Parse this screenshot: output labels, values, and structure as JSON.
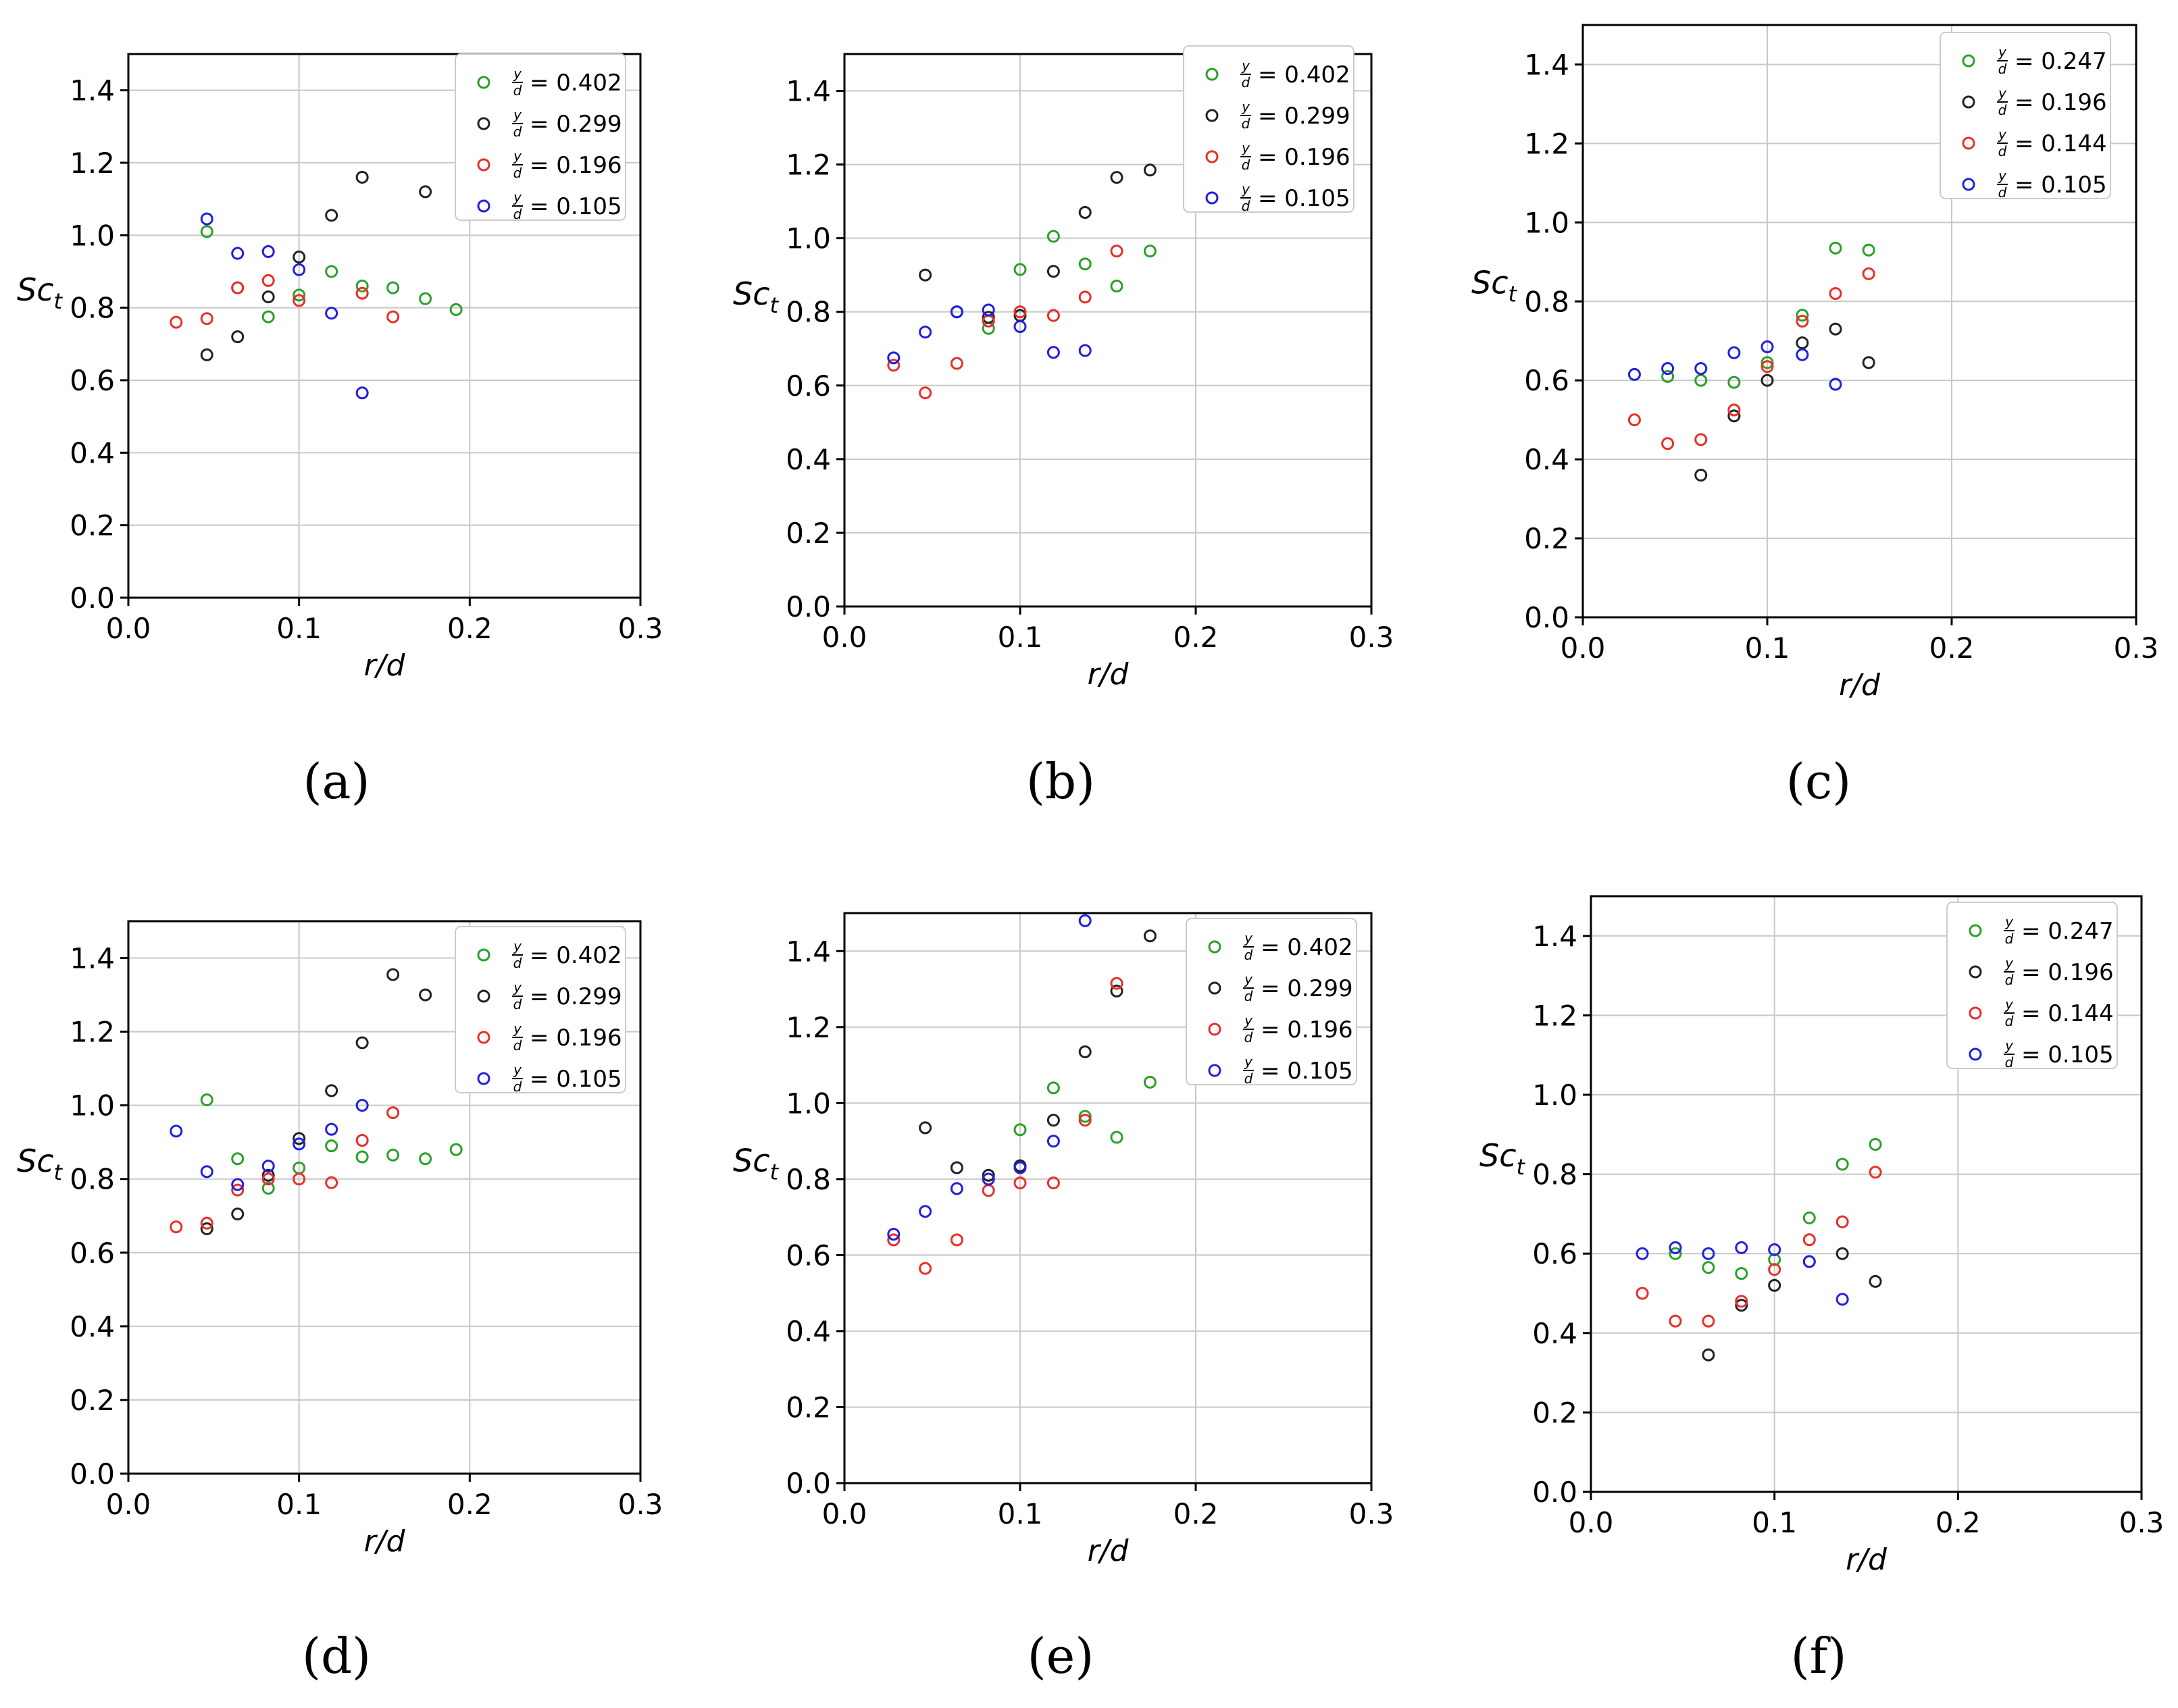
{
  "figure": {
    "panel_labels": [
      "(a)",
      "(b)",
      "(c)",
      "(d)",
      "(e)",
      "(f)"
    ],
    "legend_label_prefix": "y/d = "
  },
  "chart_data": [
    {
      "type": "scatter",
      "panel": "(a)",
      "xlabel": "r/d",
      "ylabel": "Sc_t",
      "xlim": [
        0.0,
        0.3
      ],
      "ylim": [
        0.0,
        1.5
      ],
      "xticks": [
        "0.0",
        "0.1",
        "0.2",
        "0.3"
      ],
      "yticks": [
        "0.0",
        "0.2",
        "0.4",
        "0.6",
        "0.8",
        "1.0",
        "1.2",
        "1.4"
      ],
      "grid": true,
      "legend_position": "top-right",
      "series": [
        {
          "name": "0.402",
          "color": "#2ca02c",
          "x": [
            0.046,
            0.064,
            0.082,
            0.1,
            0.119,
            0.137,
            0.155,
            0.174,
            0.192
          ],
          "y": [
            1.01,
            0.855,
            0.775,
            0.835,
            0.9,
            0.86,
            0.855,
            0.825,
            0.795
          ]
        },
        {
          "name": "0.299",
          "color": "#222222",
          "x": [
            0.046,
            0.064,
            0.082,
            0.1,
            0.119,
            0.137,
            0.174
          ],
          "y": [
            0.67,
            0.72,
            0.83,
            0.94,
            1.055,
            1.16,
            1.12
          ]
        },
        {
          "name": "0.196",
          "color": "#e8302a",
          "x": [
            0.028,
            0.046,
            0.064,
            0.082,
            0.1,
            0.137,
            0.155
          ],
          "y": [
            0.76,
            0.77,
            0.855,
            0.875,
            0.82,
            0.84,
            0.775
          ]
        },
        {
          "name": "0.105",
          "color": "#2020e0",
          "x": [
            0.046,
            0.064,
            0.082,
            0.1,
            0.119,
            0.137
          ],
          "y": [
            1.045,
            0.95,
            0.955,
            0.905,
            0.785,
            0.565
          ]
        }
      ]
    },
    {
      "type": "scatter",
      "panel": "(b)",
      "xlabel": "r/d",
      "ylabel": "Sc_t",
      "xlim": [
        0.0,
        0.3
      ],
      "ylim": [
        0.0,
        1.5
      ],
      "xticks": [
        "0.0",
        "0.1",
        "0.2",
        "0.3"
      ],
      "yticks": [
        "0.0",
        "0.2",
        "0.4",
        "0.6",
        "0.8",
        "1.0",
        "1.2",
        "1.4"
      ],
      "grid": true,
      "legend_position": "top-right",
      "series": [
        {
          "name": "0.402",
          "color": "#2ca02c",
          "x": [
            0.082,
            0.1,
            0.119,
            0.137,
            0.155,
            0.174
          ],
          "y": [
            0.755,
            0.915,
            1.005,
            0.93,
            0.87,
            0.965
          ]
        },
        {
          "name": "0.299",
          "color": "#222222",
          "x": [
            0.046,
            0.064,
            0.082,
            0.1,
            0.119,
            0.137,
            0.155,
            0.174
          ],
          "y": [
            0.9,
            0.8,
            0.785,
            0.79,
            0.91,
            1.07,
            1.165,
            1.185
          ]
        },
        {
          "name": "0.196",
          "color": "#e8302a",
          "x": [
            0.028,
            0.046,
            0.064,
            0.082,
            0.1,
            0.119,
            0.137,
            0.155
          ],
          "y": [
            0.655,
            0.58,
            0.66,
            0.775,
            0.8,
            0.79,
            0.84,
            0.965
          ]
        },
        {
          "name": "0.105",
          "color": "#2020e0",
          "x": [
            0.028,
            0.046,
            0.064,
            0.082,
            0.1,
            0.119,
            0.137
          ],
          "y": [
            0.675,
            0.745,
            0.8,
            0.805,
            0.76,
            0.69,
            0.695
          ]
        }
      ]
    },
    {
      "type": "scatter",
      "panel": "(c)",
      "xlabel": "r/d",
      "ylabel": "Sc_t",
      "xlim": [
        0.0,
        0.3
      ],
      "ylim": [
        0.0,
        1.5
      ],
      "xticks": [
        "0.0",
        "0.1",
        "0.2",
        "0.3"
      ],
      "yticks": [
        "0.0",
        "0.2",
        "0.4",
        "0.6",
        "0.8",
        "1.0",
        "1.2",
        "1.4"
      ],
      "grid": true,
      "legend_position": "top-right",
      "series": [
        {
          "name": "0.247",
          "color": "#2ca02c",
          "x": [
            0.046,
            0.064,
            0.082,
            0.1,
            0.119,
            0.137,
            0.155
          ],
          "y": [
            0.61,
            0.6,
            0.595,
            0.645,
            0.765,
            0.935,
            0.93
          ]
        },
        {
          "name": "0.196",
          "color": "#222222",
          "x": [
            0.064,
            0.082,
            0.1,
            0.119,
            0.137,
            0.155
          ],
          "y": [
            0.36,
            0.51,
            0.6,
            0.695,
            0.73,
            0.645
          ]
        },
        {
          "name": "0.144",
          "color": "#e8302a",
          "x": [
            0.028,
            0.046,
            0.064,
            0.082,
            0.1,
            0.119,
            0.137,
            0.155
          ],
          "y": [
            0.5,
            0.44,
            0.45,
            0.525,
            0.635,
            0.75,
            0.82,
            0.87
          ]
        },
        {
          "name": "0.105",
          "color": "#2020e0",
          "x": [
            0.028,
            0.046,
            0.064,
            0.082,
            0.1,
            0.119,
            0.137
          ],
          "y": [
            0.615,
            0.63,
            0.63,
            0.67,
            0.685,
            0.665,
            0.59
          ]
        }
      ]
    },
    {
      "type": "scatter",
      "panel": "(d)",
      "xlabel": "r/d",
      "ylabel": "Sc_t",
      "xlim": [
        0.0,
        0.3
      ],
      "ylim": [
        0.0,
        1.5
      ],
      "xticks": [
        "0.0",
        "0.1",
        "0.2",
        "0.3"
      ],
      "yticks": [
        "0.0",
        "0.2",
        "0.4",
        "0.6",
        "0.8",
        "1.0",
        "1.2",
        "1.4"
      ],
      "grid": true,
      "legend_position": "top-right",
      "series": [
        {
          "name": "0.402",
          "color": "#2ca02c",
          "x": [
            0.046,
            0.064,
            0.082,
            0.1,
            0.119,
            0.137,
            0.155,
            0.174,
            0.192
          ],
          "y": [
            1.015,
            0.855,
            0.775,
            0.83,
            0.89,
            0.86,
            0.865,
            0.855,
            0.88
          ]
        },
        {
          "name": "0.299",
          "color": "#222222",
          "x": [
            0.046,
            0.064,
            0.082,
            0.1,
            0.119,
            0.137,
            0.155,
            0.174
          ],
          "y": [
            0.665,
            0.705,
            0.81,
            0.91,
            1.04,
            1.17,
            1.355,
            1.3
          ]
        },
        {
          "name": "0.196",
          "color": "#e8302a",
          "x": [
            0.028,
            0.046,
            0.064,
            0.082,
            0.1,
            0.119,
            0.137,
            0.155
          ],
          "y": [
            0.67,
            0.68,
            0.77,
            0.8,
            0.8,
            0.79,
            0.905,
            0.98
          ]
        },
        {
          "name": "0.105",
          "color": "#2020e0",
          "x": [
            0.028,
            0.046,
            0.064,
            0.082,
            0.1,
            0.119,
            0.137
          ],
          "y": [
            0.93,
            0.82,
            0.785,
            0.835,
            0.895,
            0.935,
            1.0
          ]
        }
      ]
    },
    {
      "type": "scatter",
      "panel": "(e)",
      "xlabel": "r/d",
      "ylabel": "Sc_t",
      "xlim": [
        0.0,
        0.3
      ],
      "ylim": [
        0.0,
        1.5
      ],
      "xticks": [
        "0.0",
        "0.1",
        "0.2",
        "0.3"
      ],
      "yticks": [
        "0.0",
        "0.2",
        "0.4",
        "0.6",
        "0.8",
        "1.0",
        "1.2",
        "1.4"
      ],
      "grid": true,
      "legend_position": "top-right",
      "series": [
        {
          "name": "0.402",
          "color": "#2ca02c",
          "x": [
            0.1,
            0.119,
            0.137,
            0.155,
            0.174
          ],
          "y": [
            0.93,
            1.04,
            0.965,
            0.91,
            1.055
          ]
        },
        {
          "name": "0.299",
          "color": "#222222",
          "x": [
            0.046,
            0.064,
            0.082,
            0.1,
            0.119,
            0.137,
            0.155,
            0.174
          ],
          "y": [
            0.935,
            0.83,
            0.81,
            0.835,
            0.955,
            1.135,
            1.295,
            1.44
          ]
        },
        {
          "name": "0.196",
          "color": "#e8302a",
          "x": [
            0.028,
            0.046,
            0.064,
            0.082,
            0.1,
            0.119,
            0.137,
            0.155
          ],
          "y": [
            0.64,
            0.565,
            0.64,
            0.77,
            0.79,
            0.79,
            0.955,
            1.315
          ]
        },
        {
          "name": "0.105",
          "color": "#2020e0",
          "x": [
            0.028,
            0.046,
            0.064,
            0.082,
            0.1,
            0.119,
            0.137
          ],
          "y": [
            0.655,
            0.715,
            0.775,
            0.8,
            0.83,
            0.9,
            1.48
          ]
        }
      ]
    },
    {
      "type": "scatter",
      "panel": "(f)",
      "xlabel": "r/d",
      "ylabel": "Sc_t",
      "xlim": [
        0.0,
        0.3
      ],
      "ylim": [
        0.0,
        1.5
      ],
      "xticks": [
        "0.0",
        "0.1",
        "0.2",
        "0.3"
      ],
      "yticks": [
        "0.0",
        "0.2",
        "0.4",
        "0.6",
        "0.8",
        "1.0",
        "1.2",
        "1.4"
      ],
      "grid": true,
      "legend_position": "top-right",
      "series": [
        {
          "name": "0.247",
          "color": "#2ca02c",
          "x": [
            0.046,
            0.064,
            0.082,
            0.1,
            0.119,
            0.137,
            0.155
          ],
          "y": [
            0.6,
            0.565,
            0.55,
            0.585,
            0.69,
            0.825,
            0.875
          ]
        },
        {
          "name": "0.196",
          "color": "#222222",
          "x": [
            0.064,
            0.082,
            0.1,
            0.119,
            0.137,
            0.155
          ],
          "y": [
            0.345,
            0.47,
            0.52,
            0.58,
            0.6,
            0.53
          ]
        },
        {
          "name": "0.144",
          "color": "#e8302a",
          "x": [
            0.028,
            0.046,
            0.064,
            0.082,
            0.1,
            0.119,
            0.137,
            0.155
          ],
          "y": [
            0.5,
            0.43,
            0.43,
            0.48,
            0.56,
            0.635,
            0.68,
            0.805
          ]
        },
        {
          "name": "0.105",
          "color": "#2020e0",
          "x": [
            0.028,
            0.046,
            0.064,
            0.082,
            0.1,
            0.119,
            0.137
          ],
          "y": [
            0.6,
            0.615,
            0.6,
            0.615,
            0.61,
            0.58,
            0.485
          ]
        }
      ]
    }
  ]
}
